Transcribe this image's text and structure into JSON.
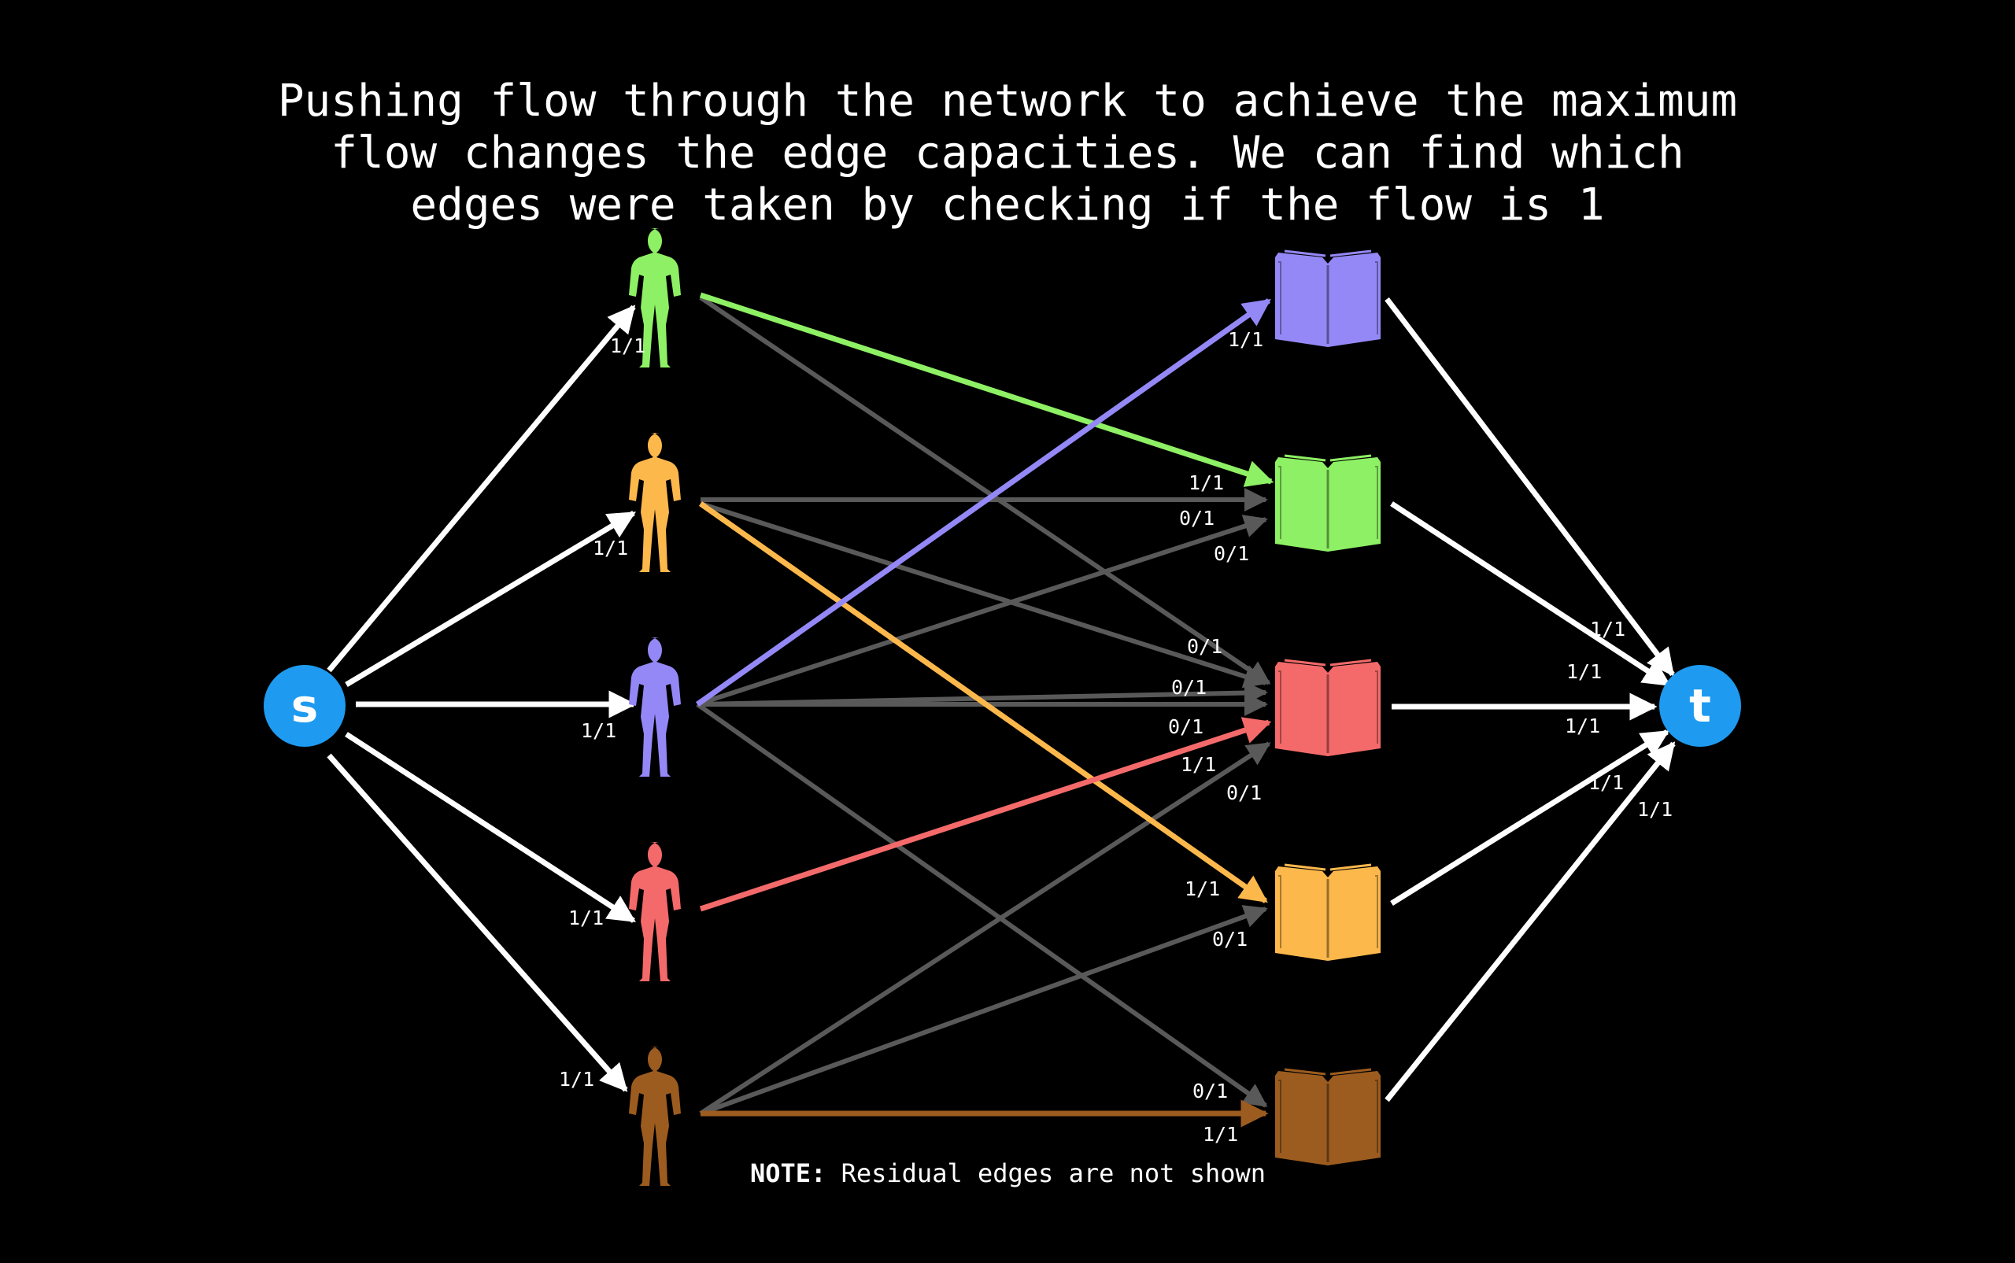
{
  "caption": "Pushing flow through the network to achieve the maximum\nflow changes the edge capacities. We can find which\nedges were taken by checking if the flow is 1",
  "note": {
    "prefix": "NOTE:",
    "text": " Residual edges are not shown"
  },
  "source": {
    "label": "s",
    "color": "#1e9bf0"
  },
  "sink": {
    "label": "t",
    "color": "#1e9bf0"
  },
  "colors": {
    "green": "#8ef064",
    "orange": "#fdb84c",
    "purple": "#9488f7",
    "red": "#f46a6a",
    "brown": "#9c5c1f",
    "white": "#ffffff",
    "gray": "#595959"
  },
  "people": [
    {
      "id": "green",
      "color": "#8ef064"
    },
    {
      "id": "orange",
      "color": "#fdb84c"
    },
    {
      "id": "purple",
      "color": "#9488f7"
    },
    {
      "id": "red",
      "color": "#f46a6a"
    },
    {
      "id": "brown",
      "color": "#9c5c1f"
    }
  ],
  "books": [
    {
      "id": "purple",
      "color": "#9488f7"
    },
    {
      "id": "green",
      "color": "#8ef064"
    },
    {
      "id": "red",
      "color": "#f46a6a"
    },
    {
      "id": "orange",
      "color": "#fdb84c"
    },
    {
      "id": "brown",
      "color": "#9c5c1f"
    }
  ],
  "source_edges": [
    {
      "to": "green",
      "label": "1/1"
    },
    {
      "to": "orange",
      "label": "1/1"
    },
    {
      "to": "purple",
      "label": "1/1"
    },
    {
      "to": "red",
      "label": "1/1"
    },
    {
      "to": "brown",
      "label": "1/1"
    }
  ],
  "sink_edges": [
    {
      "from": "purple",
      "label": "1/1"
    },
    {
      "from": "green",
      "label": "1/1"
    },
    {
      "from": "red",
      "label": "1/1"
    },
    {
      "from": "orange",
      "label": "1/1"
    },
    {
      "from": "brown",
      "label": "1/1"
    }
  ],
  "middle_edges": [
    {
      "from": "green",
      "to": "green",
      "label": "1/1",
      "used": true
    },
    {
      "from": "green",
      "to": "red",
      "label": "",
      "used": false
    },
    {
      "from": "orange",
      "to": "green",
      "label": "0/1",
      "used": false
    },
    {
      "from": "orange",
      "to": "red",
      "label": "0/1",
      "used": false
    },
    {
      "from": "orange",
      "to": "orange",
      "label": "1/1",
      "used": true
    },
    {
      "from": "purple",
      "to": "purple",
      "label": "1/1",
      "used": true
    },
    {
      "from": "purple",
      "to": "green",
      "label": "0/1",
      "used": false
    },
    {
      "from": "purple",
      "to": "red",
      "label": "0/1",
      "used": false
    },
    {
      "from": "purple",
      "to": "brown",
      "label": "0/1",
      "used": false
    },
    {
      "from": "red",
      "to": "red",
      "label": "1/1",
      "used": true
    },
    {
      "from": "brown",
      "to": "red",
      "label": "0/1",
      "used": false
    },
    {
      "from": "brown",
      "to": "orange",
      "label": "0/1",
      "used": false
    },
    {
      "from": "brown",
      "to": "brown",
      "label": "1/1",
      "used": true
    },
    {
      "from": "red",
      "to": "red",
      "label": "0/1",
      "used": false
    }
  ]
}
